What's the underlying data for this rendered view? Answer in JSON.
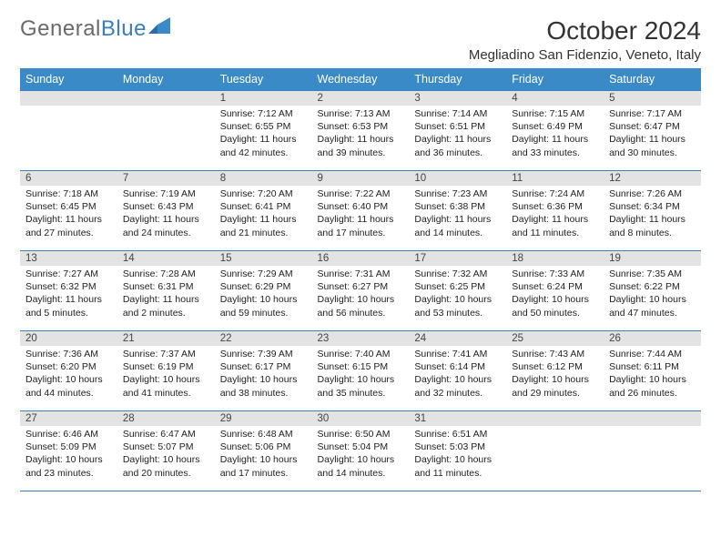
{
  "brand": {
    "part1": "General",
    "part2": "Blue"
  },
  "title": "October 2024",
  "location": "Megliadino San Fidenzio, Veneto, Italy",
  "colors": {
    "header_bg": "#3a8ac8",
    "header_text": "#ffffff",
    "day_bar_bg": "#e3e3e3",
    "border": "#3a7fc2",
    "logo_gray": "#6a6a6a",
    "logo_blue": "#3a7fc2",
    "text": "#222222",
    "background": "#ffffff"
  },
  "fonts": {
    "title_size_pt": 21,
    "location_size_pt": 11,
    "weekday_size_pt": 9,
    "daynum_size_pt": 9,
    "body_size_pt": 8
  },
  "weekdays": [
    "Sunday",
    "Monday",
    "Tuesday",
    "Wednesday",
    "Thursday",
    "Friday",
    "Saturday"
  ],
  "weeks": [
    [
      {
        "day": "",
        "lines": [
          "",
          "",
          "",
          ""
        ]
      },
      {
        "day": "",
        "lines": [
          "",
          "",
          "",
          ""
        ]
      },
      {
        "day": "1",
        "lines": [
          "Sunrise: 7:12 AM",
          "Sunset: 6:55 PM",
          "Daylight: 11 hours",
          "and 42 minutes."
        ]
      },
      {
        "day": "2",
        "lines": [
          "Sunrise: 7:13 AM",
          "Sunset: 6:53 PM",
          "Daylight: 11 hours",
          "and 39 minutes."
        ]
      },
      {
        "day": "3",
        "lines": [
          "Sunrise: 7:14 AM",
          "Sunset: 6:51 PM",
          "Daylight: 11 hours",
          "and 36 minutes."
        ]
      },
      {
        "day": "4",
        "lines": [
          "Sunrise: 7:15 AM",
          "Sunset: 6:49 PM",
          "Daylight: 11 hours",
          "and 33 minutes."
        ]
      },
      {
        "day": "5",
        "lines": [
          "Sunrise: 7:17 AM",
          "Sunset: 6:47 PM",
          "Daylight: 11 hours",
          "and 30 minutes."
        ]
      }
    ],
    [
      {
        "day": "6",
        "lines": [
          "Sunrise: 7:18 AM",
          "Sunset: 6:45 PM",
          "Daylight: 11 hours",
          "and 27 minutes."
        ]
      },
      {
        "day": "7",
        "lines": [
          "Sunrise: 7:19 AM",
          "Sunset: 6:43 PM",
          "Daylight: 11 hours",
          "and 24 minutes."
        ]
      },
      {
        "day": "8",
        "lines": [
          "Sunrise: 7:20 AM",
          "Sunset: 6:41 PM",
          "Daylight: 11 hours",
          "and 21 minutes."
        ]
      },
      {
        "day": "9",
        "lines": [
          "Sunrise: 7:22 AM",
          "Sunset: 6:40 PM",
          "Daylight: 11 hours",
          "and 17 minutes."
        ]
      },
      {
        "day": "10",
        "lines": [
          "Sunrise: 7:23 AM",
          "Sunset: 6:38 PM",
          "Daylight: 11 hours",
          "and 14 minutes."
        ]
      },
      {
        "day": "11",
        "lines": [
          "Sunrise: 7:24 AM",
          "Sunset: 6:36 PM",
          "Daylight: 11 hours",
          "and 11 minutes."
        ]
      },
      {
        "day": "12",
        "lines": [
          "Sunrise: 7:26 AM",
          "Sunset: 6:34 PM",
          "Daylight: 11 hours",
          "and 8 minutes."
        ]
      }
    ],
    [
      {
        "day": "13",
        "lines": [
          "Sunrise: 7:27 AM",
          "Sunset: 6:32 PM",
          "Daylight: 11 hours",
          "and 5 minutes."
        ]
      },
      {
        "day": "14",
        "lines": [
          "Sunrise: 7:28 AM",
          "Sunset: 6:31 PM",
          "Daylight: 11 hours",
          "and 2 minutes."
        ]
      },
      {
        "day": "15",
        "lines": [
          "Sunrise: 7:29 AM",
          "Sunset: 6:29 PM",
          "Daylight: 10 hours",
          "and 59 minutes."
        ]
      },
      {
        "day": "16",
        "lines": [
          "Sunrise: 7:31 AM",
          "Sunset: 6:27 PM",
          "Daylight: 10 hours",
          "and 56 minutes."
        ]
      },
      {
        "day": "17",
        "lines": [
          "Sunrise: 7:32 AM",
          "Sunset: 6:25 PM",
          "Daylight: 10 hours",
          "and 53 minutes."
        ]
      },
      {
        "day": "18",
        "lines": [
          "Sunrise: 7:33 AM",
          "Sunset: 6:24 PM",
          "Daylight: 10 hours",
          "and 50 minutes."
        ]
      },
      {
        "day": "19",
        "lines": [
          "Sunrise: 7:35 AM",
          "Sunset: 6:22 PM",
          "Daylight: 10 hours",
          "and 47 minutes."
        ]
      }
    ],
    [
      {
        "day": "20",
        "lines": [
          "Sunrise: 7:36 AM",
          "Sunset: 6:20 PM",
          "Daylight: 10 hours",
          "and 44 minutes."
        ]
      },
      {
        "day": "21",
        "lines": [
          "Sunrise: 7:37 AM",
          "Sunset: 6:19 PM",
          "Daylight: 10 hours",
          "and 41 minutes."
        ]
      },
      {
        "day": "22",
        "lines": [
          "Sunrise: 7:39 AM",
          "Sunset: 6:17 PM",
          "Daylight: 10 hours",
          "and 38 minutes."
        ]
      },
      {
        "day": "23",
        "lines": [
          "Sunrise: 7:40 AM",
          "Sunset: 6:15 PM",
          "Daylight: 10 hours",
          "and 35 minutes."
        ]
      },
      {
        "day": "24",
        "lines": [
          "Sunrise: 7:41 AM",
          "Sunset: 6:14 PM",
          "Daylight: 10 hours",
          "and 32 minutes."
        ]
      },
      {
        "day": "25",
        "lines": [
          "Sunrise: 7:43 AM",
          "Sunset: 6:12 PM",
          "Daylight: 10 hours",
          "and 29 minutes."
        ]
      },
      {
        "day": "26",
        "lines": [
          "Sunrise: 7:44 AM",
          "Sunset: 6:11 PM",
          "Daylight: 10 hours",
          "and 26 minutes."
        ]
      }
    ],
    [
      {
        "day": "27",
        "lines": [
          "Sunrise: 6:46 AM",
          "Sunset: 5:09 PM",
          "Daylight: 10 hours",
          "and 23 minutes."
        ]
      },
      {
        "day": "28",
        "lines": [
          "Sunrise: 6:47 AM",
          "Sunset: 5:07 PM",
          "Daylight: 10 hours",
          "and 20 minutes."
        ]
      },
      {
        "day": "29",
        "lines": [
          "Sunrise: 6:48 AM",
          "Sunset: 5:06 PM",
          "Daylight: 10 hours",
          "and 17 minutes."
        ]
      },
      {
        "day": "30",
        "lines": [
          "Sunrise: 6:50 AM",
          "Sunset: 5:04 PM",
          "Daylight: 10 hours",
          "and 14 minutes."
        ]
      },
      {
        "day": "31",
        "lines": [
          "Sunrise: 6:51 AM",
          "Sunset: 5:03 PM",
          "Daylight: 10 hours",
          "and 11 minutes."
        ]
      },
      {
        "day": "",
        "lines": [
          "",
          "",
          "",
          ""
        ]
      },
      {
        "day": "",
        "lines": [
          "",
          "",
          "",
          ""
        ]
      }
    ]
  ]
}
